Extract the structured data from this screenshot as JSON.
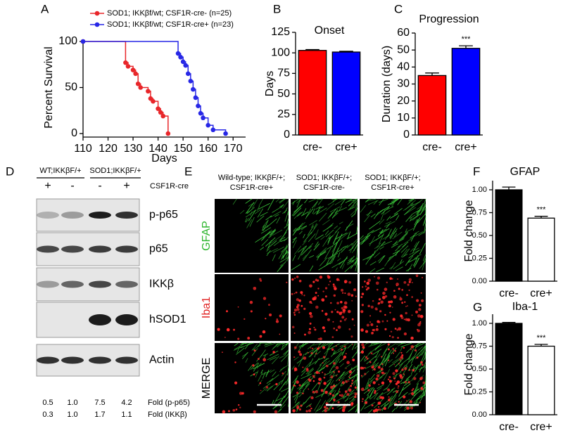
{
  "panel_labels": [
    "A",
    "B",
    "C",
    "D",
    "E",
    "F",
    "G"
  ],
  "chart_data": [
    {
      "type": "line",
      "xlabel": "Days",
      "ylabel": "Percent Survival",
      "xlim": [
        110,
        175
      ],
      "xticks": [
        110,
        120,
        130,
        140,
        150,
        160,
        170
      ],
      "ylim": [
        0,
        100
      ],
      "yticks": [
        0,
        50,
        100
      ],
      "series": [
        {
          "name": "SOD1; IKKβf/wt; CSF1R-cre-  (n=25)",
          "color": "#e8262a",
          "x": [
            110,
            127,
            128,
            130,
            131,
            132,
            133,
            136,
            137,
            138,
            140,
            141,
            142,
            144
          ],
          "values": [
            100,
            77,
            73,
            69,
            65,
            54,
            50,
            46,
            38,
            35,
            27,
            23,
            19,
            0
          ]
        },
        {
          "name": "SOD1; IKKβf/wt; CSF1R-cre+ (n=23)",
          "color": "#2727e6",
          "x": [
            110,
            148,
            149,
            150,
            151,
            152,
            153,
            154,
            155,
            156,
            157,
            158,
            160,
            162,
            167
          ],
          "values": [
            100,
            87,
            83,
            78,
            74,
            65,
            57,
            48,
            39,
            30,
            22,
            17,
            9,
            4,
            0
          ]
        }
      ]
    },
    {
      "type": "bar",
      "title": "Onset",
      "ylabel": "Days",
      "categories": [
        "cre-",
        "cre+"
      ],
      "values": [
        103,
        101
      ],
      "errors": [
        1,
        1
      ],
      "colors": [
        "#ff0000",
        "#0000ff"
      ],
      "ylim": [
        0,
        125
      ],
      "yticks": [
        0,
        25,
        50,
        75,
        100,
        125
      ]
    },
    {
      "type": "bar",
      "title": "Progression",
      "ylabel": "Duration (days)",
      "categories": [
        "cre-",
        "cre+"
      ],
      "values": [
        35,
        51
      ],
      "errors": [
        1.5,
        1.5
      ],
      "colors": [
        "#ff0000",
        "#0000ff"
      ],
      "ylim": [
        0,
        60
      ],
      "yticks": [
        0,
        10,
        20,
        30,
        40,
        50,
        60
      ],
      "annotation": "***"
    },
    {
      "type": "bar",
      "title": "GFAP",
      "ylabel": "Fold change",
      "categories": [
        "cre-",
        "cre+"
      ],
      "values": [
        1.0,
        0.69
      ],
      "errors": [
        0.03,
        0.02
      ],
      "colors": [
        "#000000",
        "#ffffff"
      ],
      "ylim": [
        0,
        1.1
      ],
      "yticks": [
        {
          "value": 0,
          "label": "0.00"
        },
        {
          "value": 0.25,
          "label": "0.25"
        },
        {
          "value": 0.5,
          "label": "0.50"
        },
        {
          "value": 0.75,
          "label": "0.75"
        },
        {
          "value": 1,
          "label": "1.00"
        }
      ],
      "annotation": "***"
    },
    {
      "type": "bar",
      "title": "Iba-1",
      "ylabel": "Fold change",
      "categories": [
        "cre-",
        "cre+"
      ],
      "values": [
        1.0,
        0.75
      ],
      "errors": [
        0.01,
        0.02
      ],
      "colors": [
        "#000000",
        "#ffffff"
      ],
      "ylim": [
        0,
        1.1
      ],
      "yticks": [
        {
          "value": 0,
          "label": "0.00"
        },
        {
          "value": 0.25,
          "label": "0.25"
        },
        {
          "value": 0.5,
          "label": "0.50"
        },
        {
          "value": 0.75,
          "label": "0.75"
        },
        {
          "value": 1,
          "label": "1.00"
        }
      ],
      "annotation": "***"
    }
  ],
  "blot": {
    "groups": [
      "WT;IKKβF/+",
      "SOD1;IKKβF/+"
    ],
    "treatment": "CSF1R-cre",
    "lanes": [
      "+",
      "-",
      "-",
      "+"
    ],
    "bands": [
      "p-p65",
      "p65",
      "IKKβ",
      "hSOD1",
      "Actin"
    ],
    "fold_rows": [
      {
        "values": [
          "0.5",
          "1.0",
          "7.5",
          "4.2"
        ],
        "label": "Fold (p-p65)"
      },
      {
        "values": [
          "0.3",
          "1.0",
          "1.7",
          "1.1"
        ],
        "label": "Fold (IKKβ)"
      }
    ]
  },
  "micrographs": {
    "columns": [
      [
        "Wild-type; IKKβF/+;",
        "CSF1R-cre+"
      ],
      [
        "SOD1; IKKβF/+;",
        "CSF1R-cre-"
      ],
      [
        "SOD1; IKKβF/+;",
        "CSF1R-cre+"
      ]
    ],
    "rows": [
      "GFAP",
      "Iba1",
      "MERGE"
    ]
  }
}
